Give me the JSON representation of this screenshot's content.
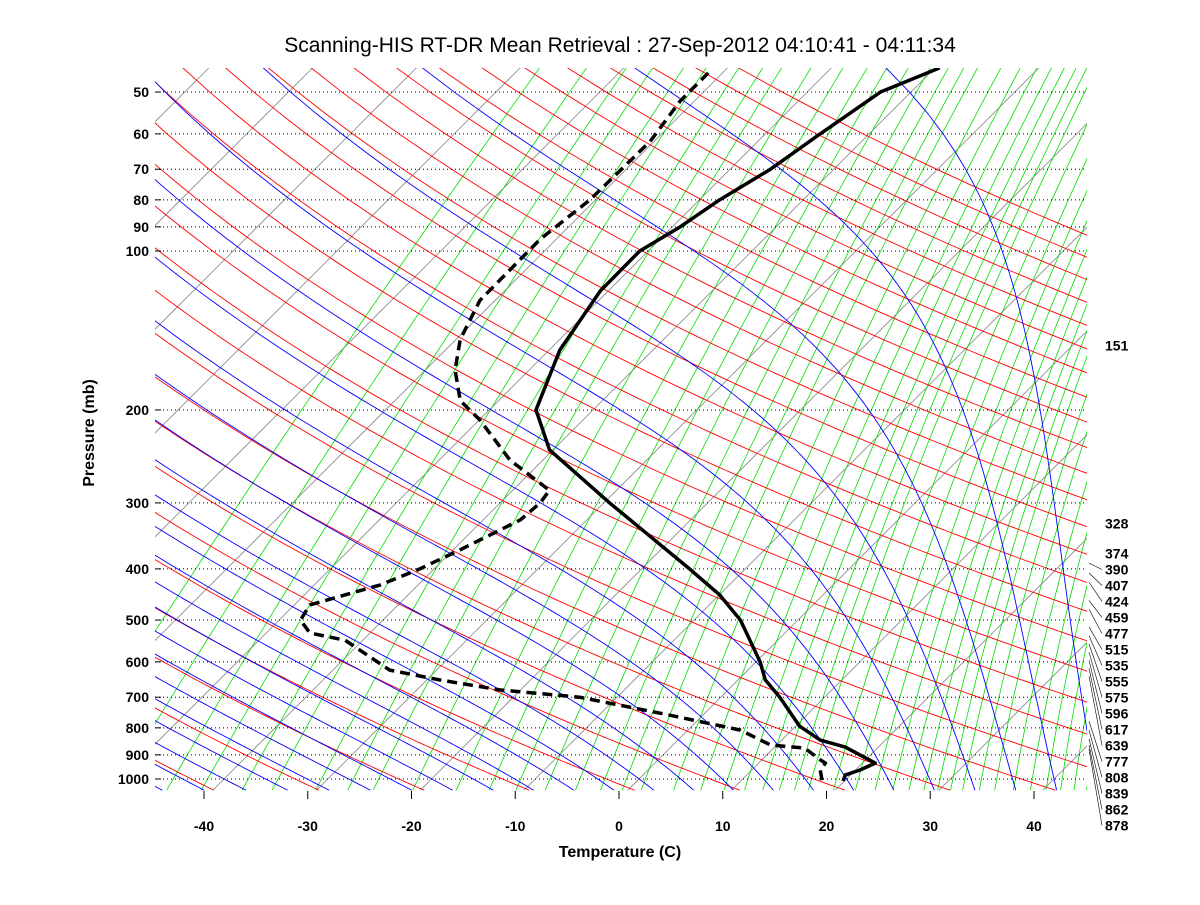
{
  "chart_data": {
    "type": "line",
    "subtype": "skew-t log-p diagram",
    "title": "Scanning-HIS RT-DR Mean Retrieval : 27-Sep-2012 04:10:41 - 04:11:34",
    "xlabel": "Temperature (C)",
    "ylabel": "Pressure (mb)",
    "xlim": [
      -45,
      45
    ],
    "ylim_pressure": [
      1050,
      45
    ],
    "x_ticks": [
      -40,
      -30,
      -20,
      -10,
      0,
      10,
      20,
      30,
      40
    ],
    "y_ticks": [
      50,
      60,
      70,
      80,
      90,
      100,
      200,
      300,
      400,
      500,
      600,
      700,
      800,
      900,
      1000
    ],
    "grid": "horizontal dotted at y ticks",
    "note": "temperatures given as read on the skewed x axis",
    "series": [
      {
        "name": "Temperature",
        "style": "solid",
        "color": "#000000",
        "points": [
          [
            45,
            30.9
          ],
          [
            50,
            25.2
          ],
          [
            60,
            19.4
          ],
          [
            70,
            14.6
          ],
          [
            80,
            9.7
          ],
          [
            90,
            5.9
          ],
          [
            100,
            2.0
          ],
          [
            119,
            -1.8
          ],
          [
            154,
            -5.7
          ],
          [
            200,
            -8.0
          ],
          [
            238,
            -6.7
          ],
          [
            300,
            -0.9
          ],
          [
            400,
            6.8
          ],
          [
            448,
            9.7
          ],
          [
            500,
            11.7
          ],
          [
            600,
            13.6
          ],
          [
            649,
            14.1
          ],
          [
            700,
            15.5
          ],
          [
            794,
            17.4
          ],
          [
            844,
            19.4
          ],
          [
            870,
            21.8
          ],
          [
            933,
            24.7
          ],
          [
            962,
            23.2
          ],
          [
            983,
            21.8
          ],
          [
            1009,
            21.6
          ]
        ]
      },
      {
        "name": "Dewpoint",
        "style": "dashed",
        "color": "#000000",
        "points": [
          [
            46,
            8.6
          ],
          [
            52,
            5.9
          ],
          [
            62,
            3.0
          ],
          [
            80,
            -2.8
          ],
          [
            95,
            -7.6
          ],
          [
            124,
            -13.4
          ],
          [
            147,
            -15.3
          ],
          [
            168,
            -15.8
          ],
          [
            192,
            -15.3
          ],
          [
            209,
            -13.4
          ],
          [
            249,
            -10.5
          ],
          [
            284,
            -6.7
          ],
          [
            300,
            -7.6
          ],
          [
            323,
            -9.5
          ],
          [
            368,
            -15.3
          ],
          [
            400,
            -19.2
          ],
          [
            429,
            -23.0
          ],
          [
            468,
            -29.8
          ],
          [
            500,
            -30.7
          ],
          [
            529,
            -29.8
          ],
          [
            546,
            -26.4
          ],
          [
            622,
            -22.1
          ],
          [
            649,
            -17.3
          ],
          [
            678,
            -11.5
          ],
          [
            700,
            -3.8
          ],
          [
            757,
            4.9
          ],
          [
            808,
            11.7
          ],
          [
            862,
            14.6
          ],
          [
            874,
            17.9
          ],
          [
            920,
            19.4
          ],
          [
            933,
            19.9
          ],
          [
            962,
            19.4
          ],
          [
            1013,
            19.6
          ]
        ]
      }
    ],
    "level_labels": [
      "151",
      "328",
      "374",
      "390",
      "407",
      "424",
      "459",
      "477",
      "515",
      "535",
      "555",
      "575",
      "596",
      "617",
      "639",
      "777",
      "808",
      "839",
      "862",
      "878"
    ],
    "background_lines": {
      "isotherms_color": "#888888",
      "dry_adiabats_color": "#ff0000",
      "moist_adiabats_color": "#0000ff",
      "mixing_ratio_color": "#00dd00"
    }
  }
}
